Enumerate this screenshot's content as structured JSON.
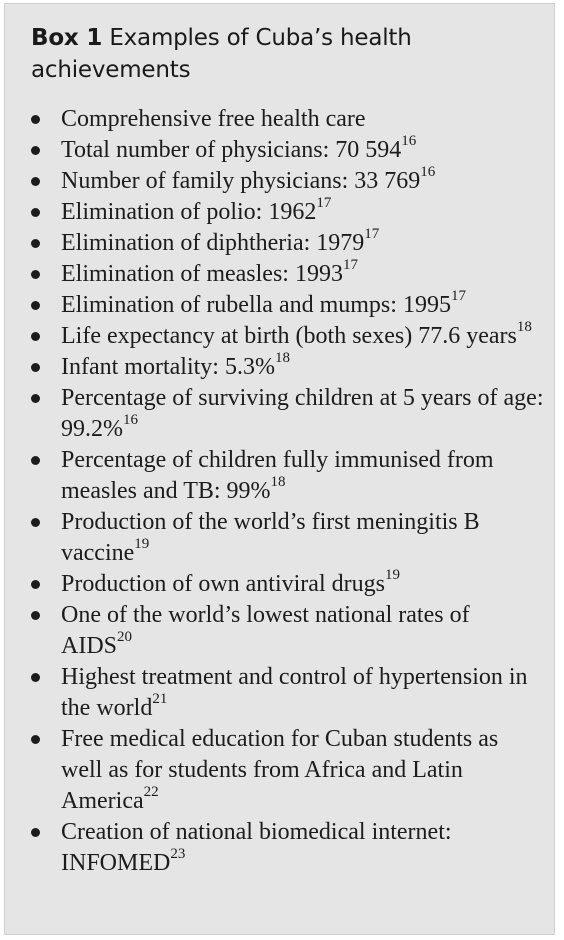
{
  "box": {
    "label": "Box 1",
    "title": "Examples of Cuba’s health achievements"
  },
  "items": [
    {
      "text": "Comprehensive free health care",
      "ref": ""
    },
    {
      "text": "Total number of physicians: 70 594",
      "ref": "16"
    },
    {
      "text": "Number of family physicians: 33 769",
      "ref": "16"
    },
    {
      "text": "Elimination of polio: 1962",
      "ref": "17"
    },
    {
      "text": "Elimination of diphtheria: 1979",
      "ref": "17"
    },
    {
      "text": "Elimination of measles: 1993",
      "ref": "17"
    },
    {
      "text": "Elimination of rubella and mumps: 1995",
      "ref": "17"
    },
    {
      "text": "Life expectancy at birth (both sexes) 77.6 years",
      "ref": "18"
    },
    {
      "text": "Infant mortality: 5.3%",
      "ref": "18"
    },
    {
      "text": "Percentage of surviving children at 5 years of age: 99.2%",
      "ref": "16"
    },
    {
      "text": "Percentage of children fully immunised from measles and TB: 99%",
      "ref": "18"
    },
    {
      "text": "Production of the world’s first meningitis B vaccine",
      "ref": "19"
    },
    {
      "text": "Production of own antiviral drugs",
      "ref": "19"
    },
    {
      "text": "One of the world’s lowest national rates of AIDS",
      "ref": "20"
    },
    {
      "text": "Highest treatment and control of hypertension in the world",
      "ref": "21"
    },
    {
      "text": "Free medical education for Cuban students as well as for students from Africa and Latin America",
      "ref": "22"
    },
    {
      "text": "Creation of national biomedical internet: INFOMED",
      "ref": "23"
    }
  ]
}
